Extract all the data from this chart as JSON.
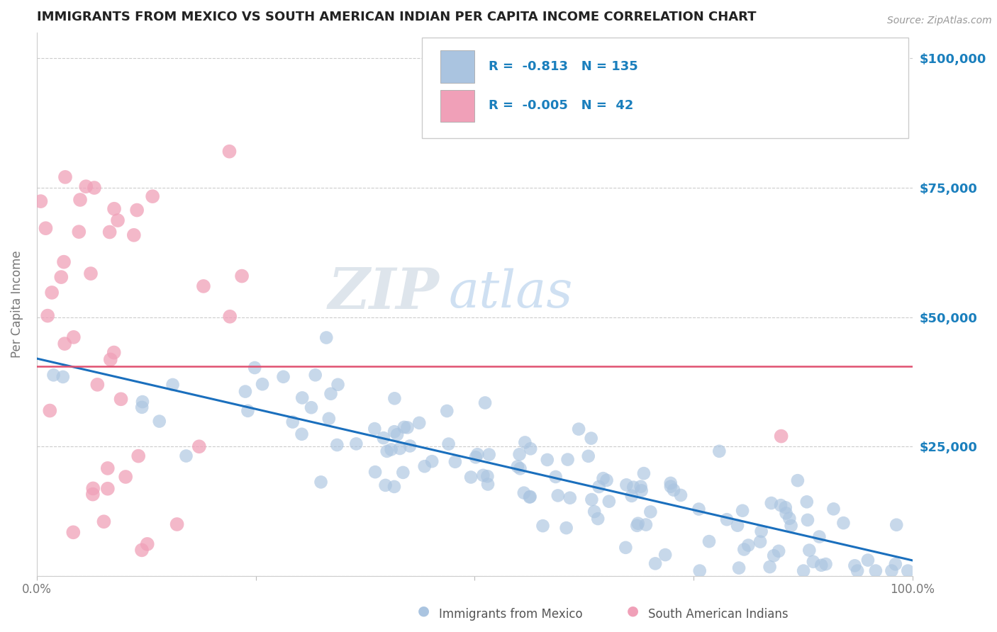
{
  "title": "IMMIGRANTS FROM MEXICO VS SOUTH AMERICAN INDIAN PER CAPITA INCOME CORRELATION CHART",
  "source_text": "Source: ZipAtlas.com",
  "ylabel": "Per Capita Income",
  "watermark_zip": "ZIP",
  "watermark_atlas": "atlas",
  "legend_blue_label": "Immigrants from Mexico",
  "legend_pink_label": "South American Indians",
  "R_blue": -0.813,
  "N_blue": 135,
  "R_pink": -0.005,
  "N_pink": 42,
  "blue_color": "#aac4e0",
  "pink_color": "#f0a0b8",
  "blue_line_color": "#1a6fbd",
  "pink_line_color": "#e05070",
  "title_color": "#222222",
  "axis_color": "#777777",
  "right_label_color": "#1a7fbd",
  "ylim": [
    0,
    105000
  ],
  "xlim": [
    0.0,
    1.0
  ],
  "yticks": [
    0,
    25000,
    50000,
    75000,
    100000
  ],
  "xticks": [
    0.0,
    0.25,
    0.5,
    0.75,
    1.0
  ],
  "xtick_labels": [
    "0.0%",
    "",
    "",
    "",
    "100.0%"
  ],
  "grid_color": "#cccccc",
  "background_color": "#ffffff",
  "blue_trend_x0": 0.0,
  "blue_trend_y0": 42000,
  "blue_trend_x1": 1.0,
  "blue_trend_y1": 3000,
  "pink_trend_y": 40500,
  "pink_trend_x0": 0.0,
  "pink_trend_x1": 1.0
}
